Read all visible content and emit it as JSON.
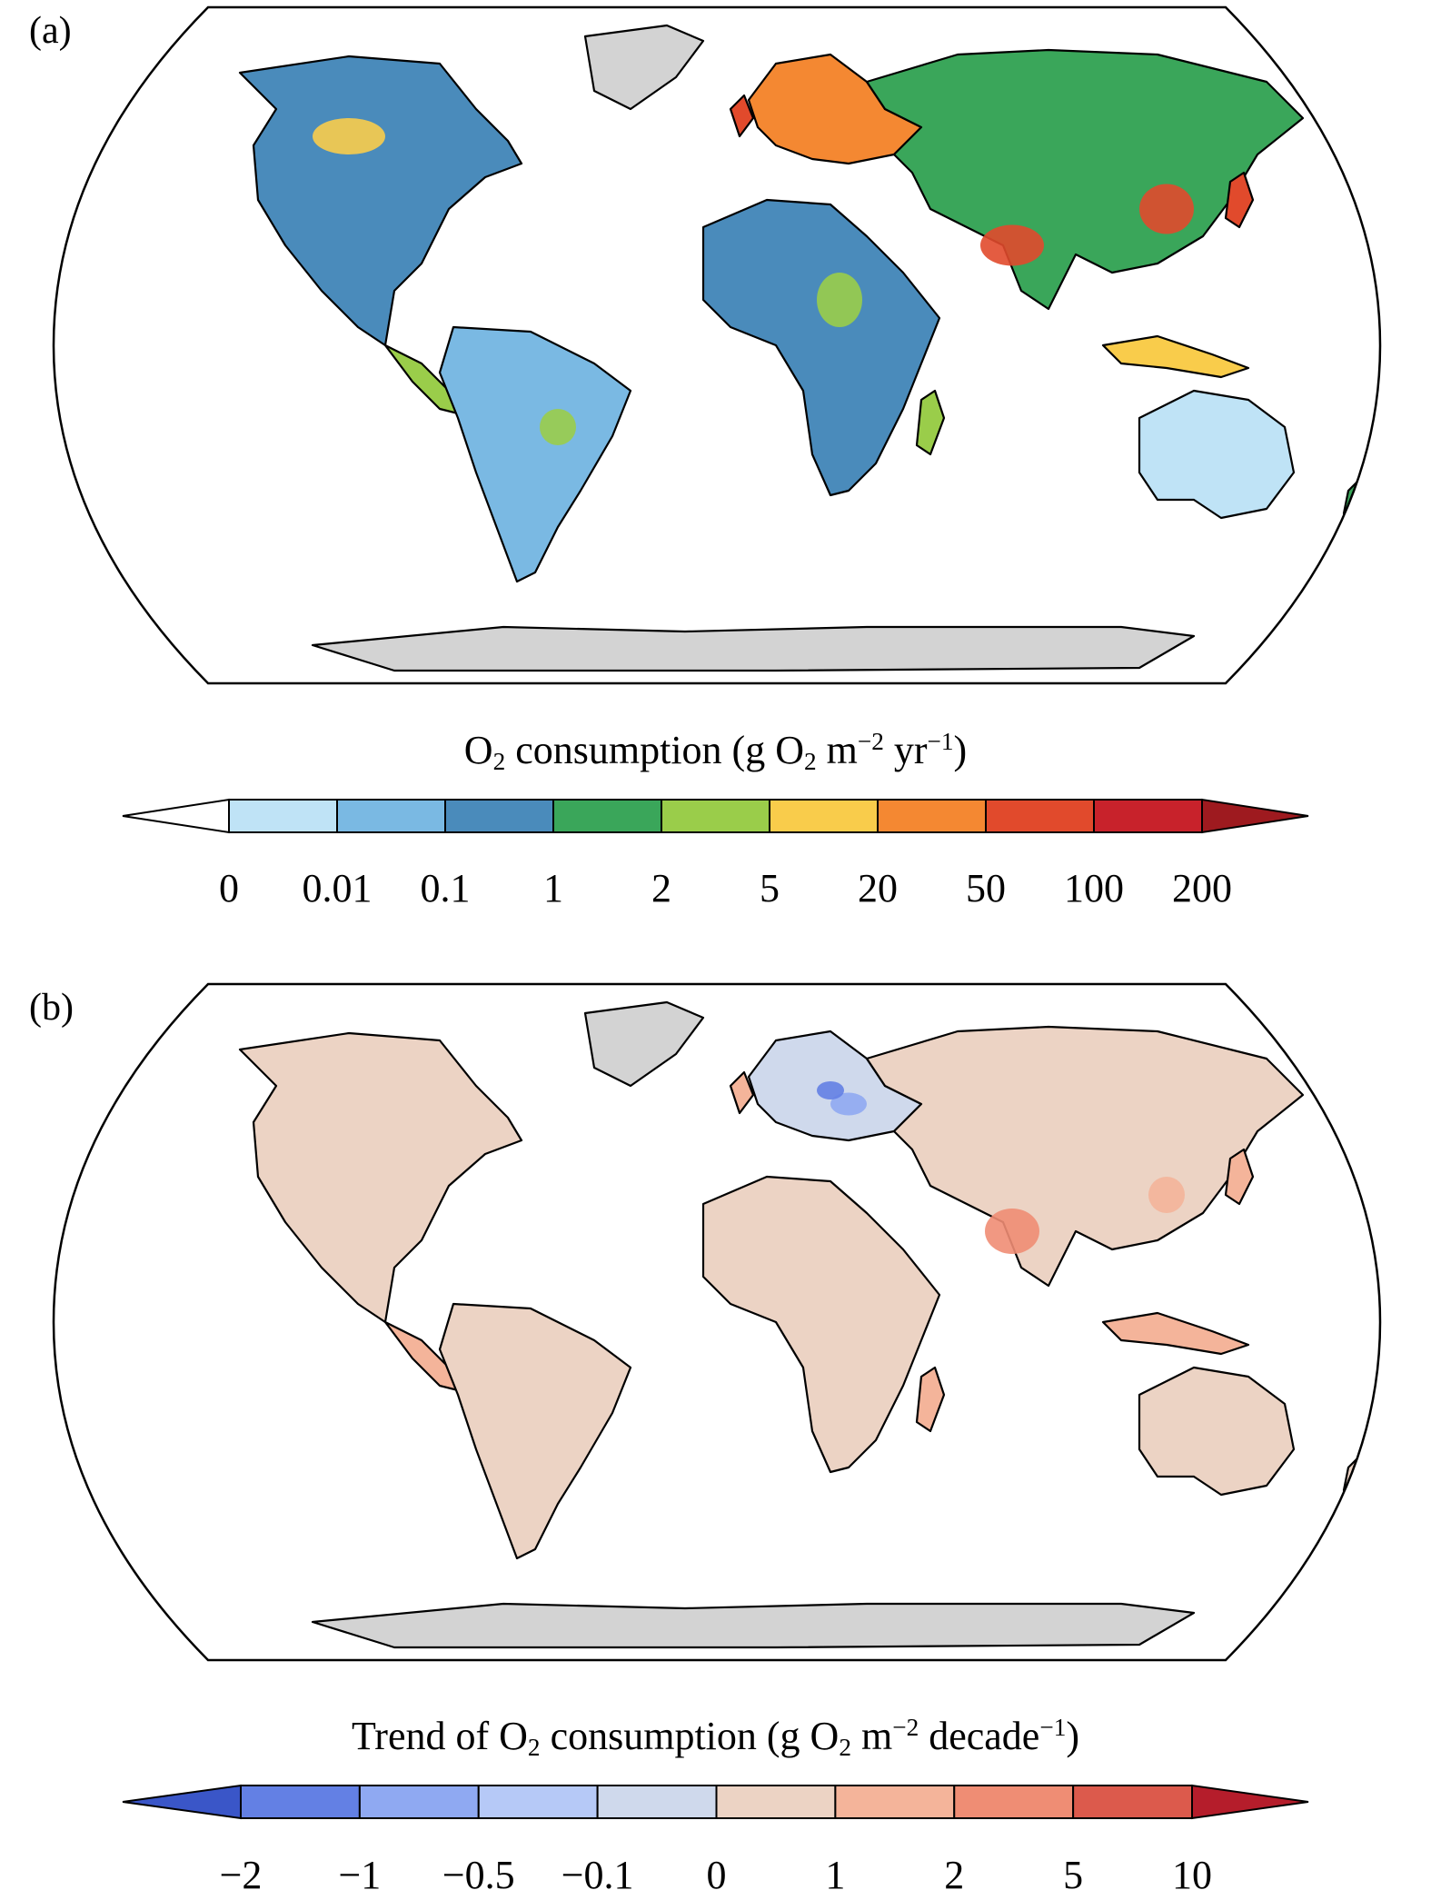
{
  "panels": [
    {
      "label": "(a)",
      "colorbar": {
        "title_parts": [
          "O",
          "2",
          " consumption (g O",
          "2",
          " m",
          "−2",
          " yr",
          "−1",
          ")"
        ],
        "ticks": [
          "0",
          "0.01",
          "0.1",
          "1",
          "2",
          "5",
          "20",
          "50",
          "100",
          "200"
        ],
        "under_color": "#ffffff",
        "colors": [
          "#bfe3f6",
          "#7ab9e3",
          "#4a8bbb",
          "#3aa65a",
          "#9acd4a",
          "#f9cc4b",
          "#f48832",
          "#e14a2c",
          "#c8222b"
        ],
        "over_color": "#9e1a1f"
      }
    },
    {
      "label": "(b)",
      "colorbar": {
        "title_parts": [
          "Trend of O",
          "2",
          " consumption (g O",
          "2",
          " m",
          "−2",
          " decade",
          "−1",
          ")"
        ],
        "ticks": [
          "−2",
          "−1",
          "−0.5",
          "−0.1",
          "0",
          "1",
          "2",
          "5",
          "10"
        ],
        "under_color": "#3a56c8",
        "colors": [
          "#6380e4",
          "#8fa9f2",
          "#b6c9f7",
          "#cfd9ec",
          "#ecd3c4",
          "#f4b49a",
          "#ef8d74",
          "#dc5a4c"
        ],
        "over_color": "#b51d2b"
      }
    }
  ],
  "map_colors": {
    "ocean": "#ffffff",
    "ice": "#d3d3d3",
    "outline": "#000000"
  }
}
